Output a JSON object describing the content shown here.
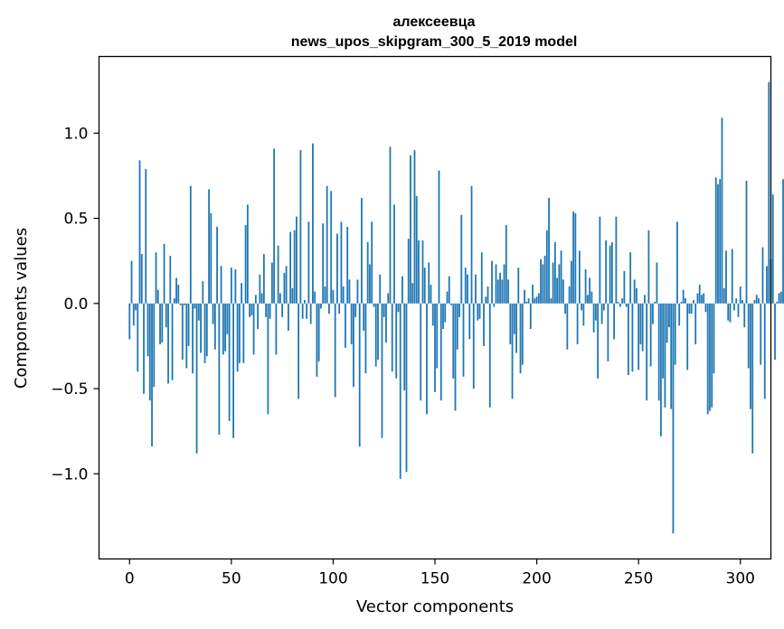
{
  "chart_data": {
    "type": "bar",
    "title": "алексеевца",
    "subtitle": "news_upos_skipgram_300_5_2019 model",
    "xlabel": "Vector components",
    "ylabel": "Components values",
    "xlim": [
      -15,
      315
    ],
    "ylim": [
      -1.5,
      1.45
    ],
    "x_ticks": [
      0,
      50,
      100,
      150,
      200,
      250,
      300
    ],
    "x_tick_labels": [
      "0",
      "50",
      "100",
      "150",
      "200",
      "250",
      "300"
    ],
    "y_ticks": [
      -1.0,
      -0.5,
      0.0,
      0.5,
      1.0
    ],
    "y_tick_labels": [
      "−1.0",
      "−0.5",
      "0.0",
      "0.5",
      "1.0"
    ],
    "bar_color": "#1f77b4",
    "grid": false,
    "values": [
      -0.21,
      0.25,
      -0.13,
      -0.04,
      -0.4,
      0.84,
      0.29,
      -0.53,
      0.79,
      -0.31,
      -0.57,
      -0.84,
      -0.49,
      0.3,
      0.08,
      -0.24,
      -0.23,
      0.35,
      -0.14,
      -0.47,
      0.28,
      -0.45,
      0.03,
      0.15,
      0.11,
      -0.01,
      -0.33,
      -0.01,
      -0.38,
      -0.25,
      0.69,
      -0.41,
      -0.03,
      -0.88,
      -0.1,
      -0.29,
      0.13,
      -0.35,
      -0.31,
      0.67,
      0.53,
      -0.12,
      -0.27,
      0.45,
      -0.77,
      0.22,
      -0.3,
      -0.28,
      -0.18,
      -0.69,
      0.21,
      -0.79,
      0.2,
      -0.4,
      -0.35,
      0.12,
      -0.35,
      0.46,
      0.58,
      -0.08,
      -0.07,
      -0.3,
      0.05,
      -0.15,
      0.17,
      0.06,
      0.29,
      -0.08,
      -0.65,
      -0.09,
      0.24,
      0.91,
      -0.3,
      0.34,
      0.06,
      -0.08,
      0.18,
      0.22,
      -0.16,
      0.42,
      0.09,
      0.43,
      0.51,
      -0.56,
      0.9,
      -0.09,
      0.02,
      -0.09,
      0.48,
      -0.12,
      0.94,
      0.07,
      -0.43,
      -0.34,
      -0.03,
      0.47,
      0.1,
      0.69,
      -0.06,
      0.66,
      0.08,
      -0.55,
      0.41,
      -0.06,
      0.48,
      0.1,
      -0.26,
      0.45,
      0.14,
      -0.24,
      -0.49,
      -0.08,
      0.14,
      -0.84,
      0.62,
      -0.16,
      -0.41,
      0.36,
      0.23,
      0.48,
      -0.02,
      -0.37,
      -0.33,
      0.17,
      -0.79,
      -0.08,
      -0.23,
      0.06,
      0.92,
      -0.4,
      0.58,
      -0.44,
      -0.05,
      -1.03,
      0.16,
      -0.51,
      -0.99,
      0.38,
      0.87,
      0.12,
      0.9,
      0.63,
      0.37,
      -0.57,
      0.37,
      0.21,
      -0.65,
      0.24,
      0.11,
      -0.13,
      -0.52,
      -0.38,
      0.78,
      -0.57,
      -0.15,
      -0.11,
      0.07,
      0.16,
      -0.01,
      -0.44,
      -0.63,
      -0.27,
      -0.08,
      0.52,
      -0.43,
      0.21,
      0.17,
      -0.21,
      0.69,
      -0.5,
      0.17,
      -0.1,
      -0.09,
      0.3,
      -0.25,
      0.04,
      0.1,
      -0.61,
      0.25,
      -0.02,
      0.23,
      0.14,
      0.18,
      0.14,
      0.23,
      0.46,
      0.14,
      -0.24,
      -0.56,
      -0.18,
      -0.29,
      0.21,
      -0.41,
      -0.36,
      0.08,
      0.01,
      0.03,
      -0.15,
      0.11,
      0.03,
      0.04,
      0.06,
      0.26,
      0.23,
      0.28,
      0.43,
      0.62,
      0.03,
      0.24,
      0.36,
      0.15,
      0.23,
      0.31,
      0.14,
      -0.06,
      -0.27,
      0.1,
      0.25,
      0.54,
      0.53,
      -0.24,
      0.31,
      -0.04,
      -0.13,
      0.2,
      0.05,
      0.15,
      0.07,
      -0.17,
      -0.1,
      -0.44,
      0.51,
      -0.12,
      -0.04,
      0.37,
      -0.34,
      0.34,
      0.36,
      -0.21,
      0.51,
      0.01,
      -0.02,
      0.03,
      0.19,
      -0.02,
      -0.42,
      0.3,
      -0.4,
      0.14,
      0.09,
      -0.39,
      -0.24,
      -0.28,
      0.05,
      -0.57,
      0.43,
      -0.37,
      -0.12,
      0.01,
      0.24,
      -0.57,
      -0.78,
      -0.44,
      -0.61,
      -0.23,
      -0.14,
      -0.62,
      -1.35,
      -0.36,
      0.48,
      -0.13,
      0.01,
      0.08,
      0.03,
      -0.39,
      -0.06,
      -0.06,
      0.02,
      -0.24,
      0.06,
      0.11,
      0.05,
      0.06,
      -0.05,
      -0.65,
      -0.63,
      -0.61,
      -0.41,
      0.74,
      0.7,
      0.73,
      1.09,
      0.09,
      0.31,
      -0.1,
      -0.11,
      0.32,
      -0.04,
      0.03,
      -0.08,
      0.1,
      0.02,
      -0.14,
      0.72,
      -0.38,
      -0.62,
      -0.88,
      0.02,
      0.05,
      0.03,
      -0.36,
      0.33,
      -0.56,
      0.22,
      1.3,
      0.26,
      0.64,
      -0.33,
      0.01,
      0.06,
      0.07,
      0.73,
      -0.06
    ]
  }
}
